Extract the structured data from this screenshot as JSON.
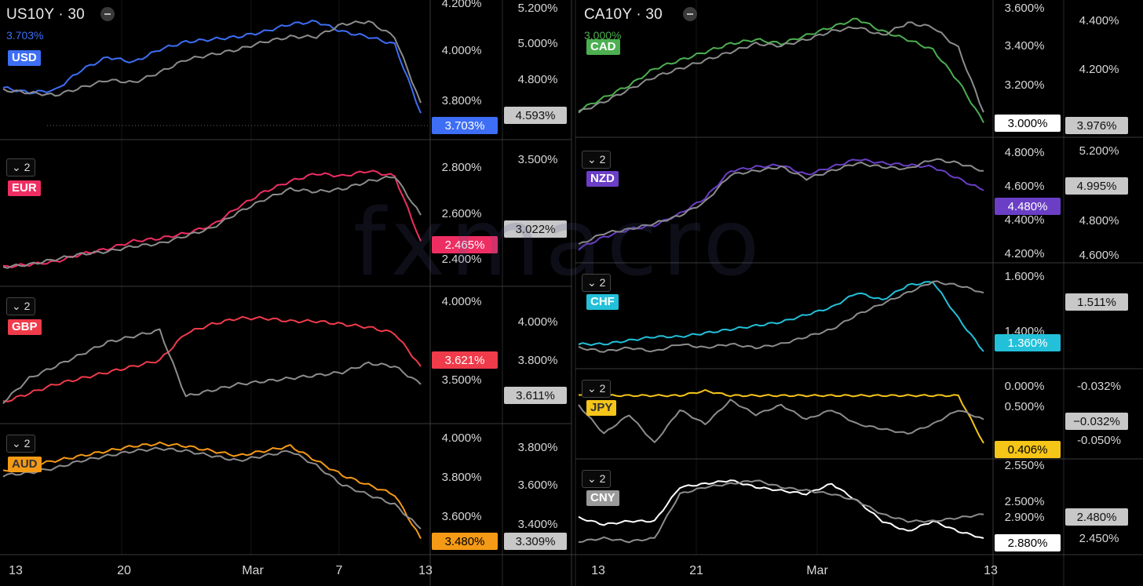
{
  "watermark": "fxmacro",
  "left_panel": {
    "symbol": "US10Y · 30",
    "symbol_value": "3.703%",
    "x_ticks": [
      "13",
      "20",
      "Mar",
      "7",
      "13"
    ]
  },
  "right_panel": {
    "symbol": "CA10Y · 30",
    "symbol_value": "3.000%",
    "x_ticks": [
      "13",
      "21",
      "Mar",
      "13"
    ]
  },
  "colors": {
    "USD": "#3d6ef5",
    "EUR": "#ee2e62",
    "GBP": "#ef3b4a",
    "AUD": "#f59a16",
    "CAD": "#4caf50",
    "NZD": "#6a3fc6",
    "CHF": "#23c0d9",
    "JPY": "#f5c518",
    "CNY": "#ffffff",
    "compare": "#8c8c8c"
  },
  "chart_data": [
    {
      "type": "line",
      "currency": "USD",
      "collapse": "",
      "axis1_ticks": [
        "4.200%",
        "4.000%",
        "3.800%"
      ],
      "axis2_ticks": [
        "5.200%",
        "5.000%",
        "4.800%"
      ],
      "tag1": "3.703%",
      "tag2": "4.593%",
      "series": [
        {
          "name": "USD",
          "values": [
            3.8,
            3.78,
            3.79,
            3.87,
            3.92,
            3.9,
            3.95,
            3.98,
            3.99,
            4.0,
            4.02,
            4.05,
            4.06,
            4.02,
            4.0,
            3.97,
            3.7
          ]
        },
        {
          "name": "",
          "values": [
            3.79,
            3.78,
            3.77,
            3.8,
            3.83,
            3.82,
            3.86,
            3.91,
            3.93,
            3.95,
            3.98,
            4.0,
            4.0,
            4.05,
            4.06,
            4.0,
            3.74
          ]
        }
      ]
    },
    {
      "type": "line",
      "currency": "EUR",
      "collapse": "2",
      "axis1_ticks": [
        "2.800%",
        "2.600%",
        "2.400%"
      ],
      "axis2_ticks": [
        "3.500%",
        "3.022%"
      ],
      "tag1": "2.465%",
      "tag2": "3.022%",
      "series": [
        {
          "name": "EUR",
          "values": [
            2.37,
            2.38,
            2.39,
            2.42,
            2.44,
            2.47,
            2.48,
            2.5,
            2.53,
            2.6,
            2.66,
            2.7,
            2.73,
            2.72,
            2.74,
            2.72,
            2.47
          ]
        },
        {
          "name": "",
          "values": [
            2.37,
            2.38,
            2.4,
            2.42,
            2.43,
            2.45,
            2.46,
            2.49,
            2.52,
            2.58,
            2.63,
            2.67,
            2.66,
            2.67,
            2.7,
            2.72,
            2.57
          ]
        }
      ]
    },
    {
      "type": "line",
      "currency": "GBP",
      "collapse": "2",
      "axis1_ticks": [
        "4.000%",
        "3.800%",
        "3.500%"
      ],
      "axis2_ticks": [
        "4.000%",
        "3.800%"
      ],
      "tag1": "3.621%",
      "tag2": "3.611%",
      "series": [
        {
          "name": "GBP",
          "values": [
            3.5,
            3.53,
            3.56,
            3.58,
            3.6,
            3.62,
            3.64,
            3.73,
            3.76,
            3.78,
            3.78,
            3.77,
            3.77,
            3.76,
            3.75,
            3.73,
            3.62
          ]
        },
        {
          "name": "",
          "values": [
            3.5,
            3.58,
            3.62,
            3.66,
            3.7,
            3.72,
            3.74,
            3.52,
            3.54,
            3.56,
            3.57,
            3.58,
            3.59,
            3.6,
            3.63,
            3.62,
            3.56
          ]
        }
      ]
    },
    {
      "type": "line",
      "currency": "AUD",
      "collapse": "2",
      "axis1_ticks": [
        "4.000%",
        "3.800%",
        "3.600%"
      ],
      "axis2_ticks": [
        "3.800%",
        "3.600%",
        "3.400%"
      ],
      "tag1": "3.480%",
      "tag2": "3.309%",
      "series": [
        {
          "name": "AUD",
          "values": [
            3.76,
            3.78,
            3.8,
            3.82,
            3.84,
            3.86,
            3.87,
            3.86,
            3.84,
            3.82,
            3.84,
            3.86,
            3.8,
            3.74,
            3.7,
            3.66,
            3.48
          ]
        },
        {
          "name": "",
          "values": [
            3.74,
            3.75,
            3.77,
            3.8,
            3.82,
            3.84,
            3.85,
            3.84,
            3.82,
            3.8,
            3.82,
            3.84,
            3.78,
            3.7,
            3.66,
            3.62,
            3.52
          ]
        }
      ]
    },
    {
      "type": "line",
      "currency": "CAD",
      "collapse": "",
      "axis1_ticks": [
        "3.600%",
        "3.400%",
        "3.200%"
      ],
      "axis2_ticks": [
        "4.400%",
        "4.200%"
      ],
      "tag1": "3.000%",
      "tag2": "3.976%",
      "series": [
        {
          "name": "CAD",
          "values": [
            3.06,
            3.12,
            3.18,
            3.26,
            3.3,
            3.34,
            3.38,
            3.4,
            3.38,
            3.42,
            3.46,
            3.5,
            3.44,
            3.4,
            3.35,
            3.2,
            3.0
          ]
        },
        {
          "name": "",
          "values": [
            3.05,
            3.1,
            3.16,
            3.22,
            3.26,
            3.3,
            3.34,
            3.38,
            3.37,
            3.4,
            3.44,
            3.46,
            3.42,
            3.48,
            3.46,
            3.36,
            3.05
          ]
        }
      ]
    },
    {
      "type": "line",
      "currency": "NZD",
      "collapse": "2",
      "axis1_ticks": [
        "4.800%",
        "4.600%",
        "4.400%",
        "4.200%"
      ],
      "axis2_ticks": [
        "5.200%",
        "4.800%",
        "4.600%"
      ],
      "tag1": "4.480%",
      "tag2": "4.995%",
      "series": [
        {
          "name": "NZD",
          "values": [
            4.2,
            4.26,
            4.3,
            4.32,
            4.38,
            4.46,
            4.6,
            4.62,
            4.63,
            4.58,
            4.62,
            4.66,
            4.64,
            4.63,
            4.62,
            4.56,
            4.5
          ]
        },
        {
          "name": "",
          "values": [
            4.22,
            4.28,
            4.3,
            4.33,
            4.37,
            4.44,
            4.58,
            4.6,
            4.62,
            4.56,
            4.6,
            4.64,
            4.62,
            4.61,
            4.66,
            4.64,
            4.6
          ]
        }
      ]
    },
    {
      "type": "line",
      "currency": "CHF",
      "collapse": "2",
      "axis1_ticks": [
        "1.600%",
        "1.400%"
      ],
      "axis2_ticks": [
        "1.511%"
      ],
      "tag1": "1.360%",
      "tag2": "1.511%",
      "series": [
        {
          "name": "CHF",
          "values": [
            1.38,
            1.38,
            1.39,
            1.4,
            1.4,
            1.41,
            1.42,
            1.43,
            1.44,
            1.46,
            1.48,
            1.52,
            1.5,
            1.54,
            1.55,
            1.45,
            1.36
          ]
        },
        {
          "name": "",
          "values": [
            1.37,
            1.36,
            1.37,
            1.36,
            1.38,
            1.37,
            1.38,
            1.37,
            1.38,
            1.4,
            1.42,
            1.46,
            1.49,
            1.52,
            1.55,
            1.54,
            1.52
          ]
        }
      ]
    },
    {
      "type": "line",
      "currency": "JPY",
      "collapse": "2",
      "axis1_ticks": [
        "0.000%",
        "0.500%"
      ],
      "axis2_ticks": [
        "-0.032%",
        "-0.050%"
      ],
      "tag1": "0.406%",
      "tag2": "−0.032%",
      "series": [
        {
          "name": "JPY",
          "values": [
            0.5,
            0.5,
            0.5,
            0.5,
            0.5,
            0.51,
            0.5,
            0.5,
            0.5,
            0.5,
            0.5,
            0.5,
            0.5,
            0.5,
            0.5,
            0.5,
            0.4
          ]
        },
        {
          "name": "",
          "values": [
            0.48,
            0.42,
            0.46,
            0.4,
            0.47,
            0.44,
            0.49,
            0.46,
            0.48,
            0.45,
            0.47,
            0.44,
            0.43,
            0.42,
            0.44,
            0.47,
            0.45
          ]
        }
      ]
    },
    {
      "type": "line",
      "currency": "CNY",
      "collapse": "2",
      "axis1_ticks": [
        "2.550%",
        "2.500%",
        "2.900%"
      ],
      "axis2_ticks": [
        "2.450%"
      ],
      "tag1": "2.880%",
      "tag2": "2.480%",
      "series": [
        {
          "name": "CNY",
          "values": [
            2.93,
            2.91,
            2.92,
            2.92,
            3.02,
            3.03,
            3.04,
            3.02,
            3.01,
            3.0,
            3.03,
            2.98,
            2.92,
            2.89,
            2.92,
            2.89,
            2.87
          ]
        },
        {
          "name": "",
          "values": [
            2.86,
            2.87,
            2.86,
            2.87,
            3.0,
            3.02,
            3.03,
            3.04,
            3.02,
            3.01,
            3.0,
            2.98,
            2.94,
            2.92,
            2.92,
            2.93,
            2.94
          ]
        }
      ]
    }
  ]
}
